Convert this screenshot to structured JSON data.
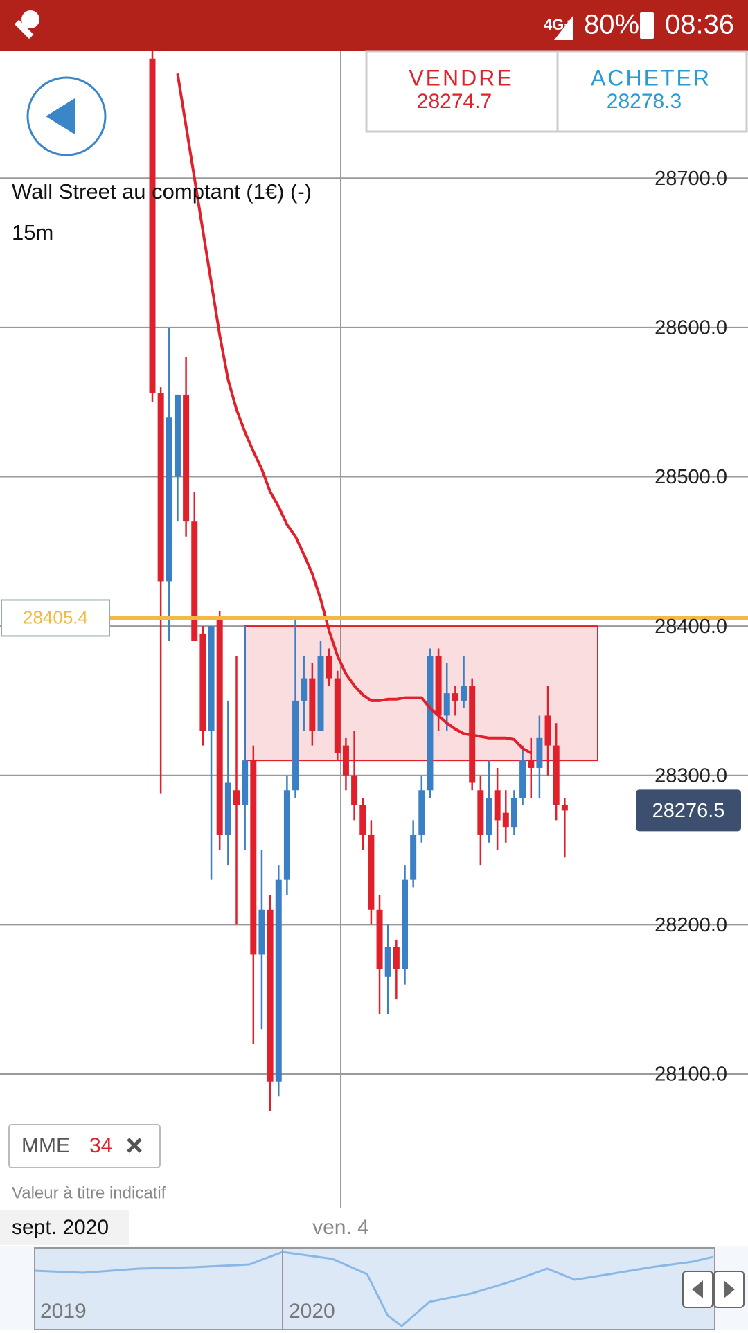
{
  "status": {
    "network": "4G+",
    "battery": "80%",
    "time": "08:36"
  },
  "quote": {
    "sell_label": "VENDRE",
    "sell": 28274.7,
    "buy_label": "ACHETER",
    "buy": 28278.3
  },
  "chart_data": {
    "type": "candlestick",
    "title": "Wall Street au comptant (1€) (-)",
    "subtitle": "15m",
    "up_color": "#3b7fc4",
    "down_color": "#e0212b",
    "candles": {
      "open": [
        28780,
        28556,
        28430,
        28500,
        28555,
        28470,
        28395,
        28330,
        28405,
        28260,
        28290,
        28280,
        28310,
        28180,
        28210,
        28095,
        28230,
        28290,
        28350,
        28365,
        28330,
        28380,
        28365,
        28320,
        28300,
        28280,
        28260,
        28210,
        28165,
        28185,
        28170,
        28230,
        28260,
        28290,
        28380,
        28340,
        28355,
        28350,
        28360,
        28290,
        28260,
        28290,
        28275,
        28265,
        28285,
        28310,
        28305,
        28340,
        28320,
        28280
      ],
      "high": [
        28790,
        28560,
        28600,
        28555,
        28580,
        28490,
        28400,
        28400,
        28410,
        28350,
        28380,
        28400,
        28320,
        28250,
        28220,
        28240,
        28300,
        28405,
        28380,
        28375,
        28390,
        28385,
        28370,
        28325,
        28330,
        28285,
        28270,
        28220,
        28200,
        28190,
        28240,
        28270,
        28300,
        28385,
        28385,
        28375,
        28360,
        28380,
        28365,
        28300,
        28310,
        28305,
        28290,
        28290,
        28320,
        28325,
        28340,
        28360,
        28335,
        28285
      ],
      "low": [
        28550,
        28288,
        28390,
        28470,
        28460,
        28390,
        28320,
        28230,
        28250,
        28240,
        28200,
        28250,
        28120,
        28130,
        28075,
        28085,
        28220,
        28285,
        28330,
        28320,
        28330,
        28360,
        28310,
        28290,
        28270,
        28250,
        28200,
        28140,
        28140,
        28150,
        28160,
        28225,
        28255,
        28285,
        28330,
        28330,
        28340,
        28345,
        28290,
        28240,
        28255,
        28250,
        28255,
        28260,
        28280,
        28285,
        28285,
        28300,
        28270,
        28245
      ],
      "close": [
        28556,
        28430,
        28540,
        28555,
        28470,
        28390,
        28330,
        28400,
        28260,
        28295,
        28280,
        28310,
        28180,
        28210,
        28095,
        28230,
        28290,
        28350,
        28365,
        28330,
        28380,
        28365,
        28315,
        28300,
        28280,
        28260,
        28210,
        28170,
        28185,
        28170,
        28230,
        28260,
        28290,
        28380,
        28340,
        28355,
        28350,
        28360,
        28295,
        28260,
        28285,
        28270,
        28265,
        28285,
        28310,
        28305,
        28325,
        28320,
        28280,
        28276.5
      ]
    },
    "ema": {
      "name": "MME",
      "period": 34,
      "color": "#e0212b",
      "values": [
        null,
        null,
        null,
        28770,
        28735,
        28700,
        28665,
        28630,
        28595,
        28565,
        28545,
        28530,
        28517,
        28505,
        28490,
        28480,
        28468,
        28460,
        28448,
        28435,
        28418,
        28397,
        28380,
        28368,
        28360,
        28354,
        28350,
        28350,
        28351,
        28351,
        28352,
        28352,
        28352,
        28345,
        28340,
        28335,
        28331,
        28328,
        28327,
        28326,
        28325,
        28325,
        28325,
        28324,
        28318,
        28315,
        null,
        null,
        null,
        null
      ]
    },
    "ylim": [
      28010,
      28785
    ],
    "yticks": [
      {
        "value": 28100,
        "label": "28100.0"
      },
      {
        "value": 28200,
        "label": "28200.0"
      },
      {
        "value": 28300,
        "label": "28300.0"
      },
      {
        "value": 28400,
        "label": "28400.0"
      },
      {
        "value": 28500,
        "label": "28500.0"
      },
      {
        "value": 28600,
        "label": "28600.0"
      },
      {
        "value": 28700,
        "label": "28700.0"
      }
    ],
    "grid": true,
    "reference_line": {
      "value": 28405.4,
      "color": "#f4b942"
    },
    "zone": {
      "from": 28310,
      "to": 28400,
      "color": "#e0212b"
    },
    "last_price": 28276.5,
    "x_label": "ven. 4",
    "date_label": "sept. 2020",
    "note": "Valeur à titre indicatif"
  },
  "navigator": {
    "labels": [
      "2019",
      "2020"
    ]
  }
}
